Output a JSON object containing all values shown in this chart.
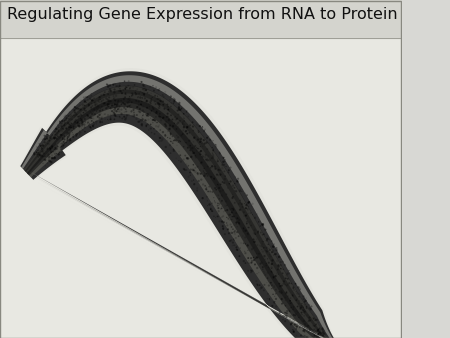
{
  "title": "Regulating Gene Expression from RNA to Protein",
  "title_fontsize": 11.5,
  "background_color": "#d8d8d4",
  "title_color": "#111111",
  "worm_dark": "#1a1a1a",
  "worm_mid": "#555550",
  "worm_light": "#aaaaaa",
  "worm_highlight": "#cccccc",
  "slide_bg": "#e8e8e2",
  "title_area_bg": "#dcdcd6"
}
